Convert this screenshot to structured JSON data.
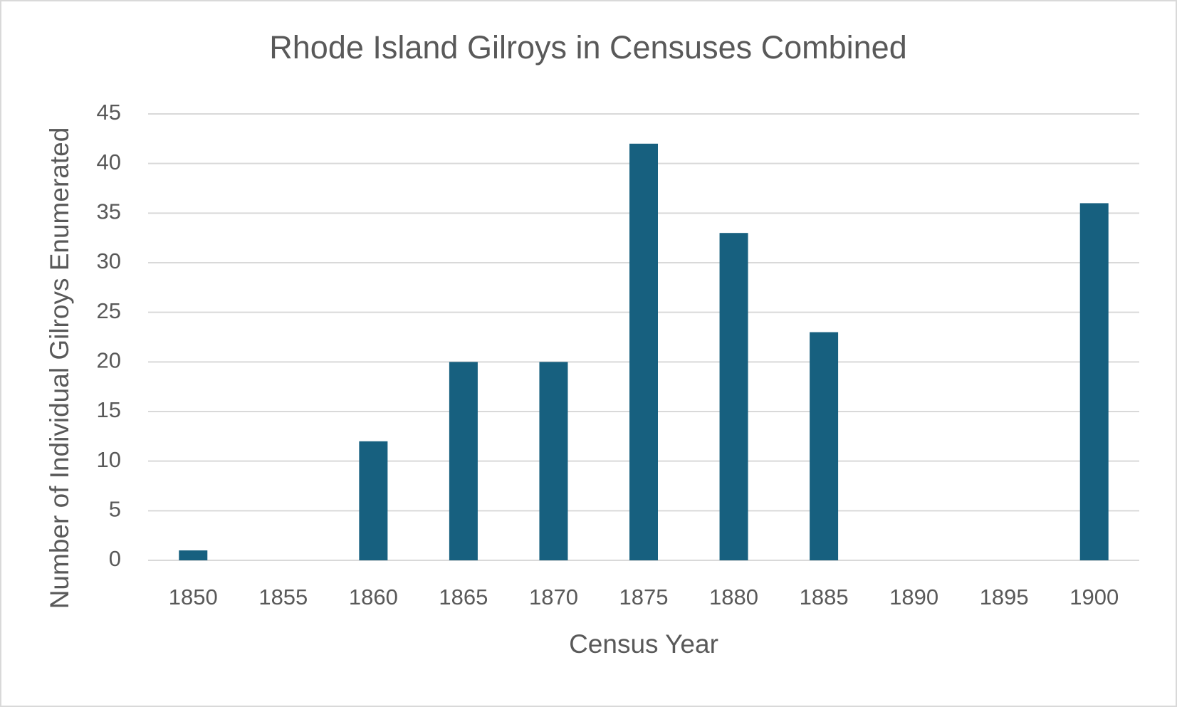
{
  "chart_data": {
    "type": "bar",
    "title": "Rhode Island Gilroys in Censuses Combined",
    "x_label": "Census Year",
    "y_label": "Number of Individual Gilroys Enumerated",
    "categories": [
      "1850",
      "1855",
      "1860",
      "1865",
      "1870",
      "1875",
      "1880",
      "1885",
      "1890",
      "1895",
      "1900"
    ],
    "values": [
      1,
      0,
      12,
      20,
      20,
      42,
      33,
      23,
      0,
      0,
      36
    ],
    "color": "#17607f",
    "ylim": [
      0,
      45
    ],
    "yticks": [
      0,
      5,
      10,
      15,
      20,
      25,
      30,
      35,
      40,
      45
    ],
    "grid": true
  }
}
